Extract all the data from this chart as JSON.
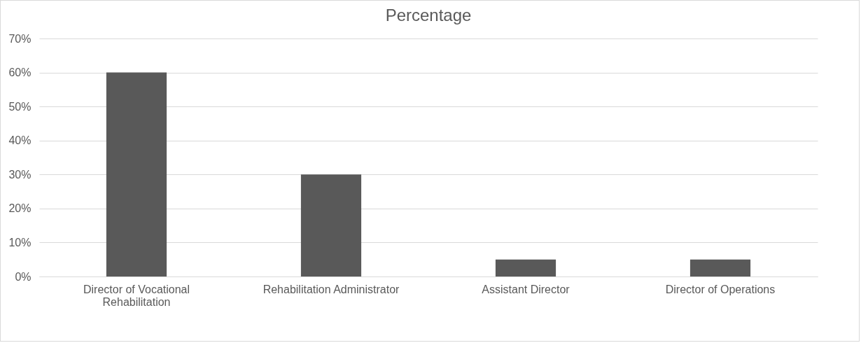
{
  "chart_data": {
    "type": "bar",
    "title": "Percentage",
    "categories": [
      "Director of Vocational Rehabilitation",
      "Rehabilitation Administrator",
      "Assistant Director",
      "Director of Operations"
    ],
    "values": [
      60,
      30,
      5,
      5
    ],
    "color": "#595959",
    "ylim": [
      0,
      70
    ],
    "yticks": [
      {
        "value": 0,
        "label": "0%"
      },
      {
        "value": 10,
        "label": "10%"
      },
      {
        "value": 20,
        "label": "20%"
      },
      {
        "value": 30,
        "label": "30%"
      },
      {
        "value": 40,
        "label": "40%"
      },
      {
        "value": 50,
        "label": "50%"
      },
      {
        "value": 60,
        "label": "60%"
      },
      {
        "value": 70,
        "label": "70%"
      }
    ],
    "grid": "y"
  }
}
